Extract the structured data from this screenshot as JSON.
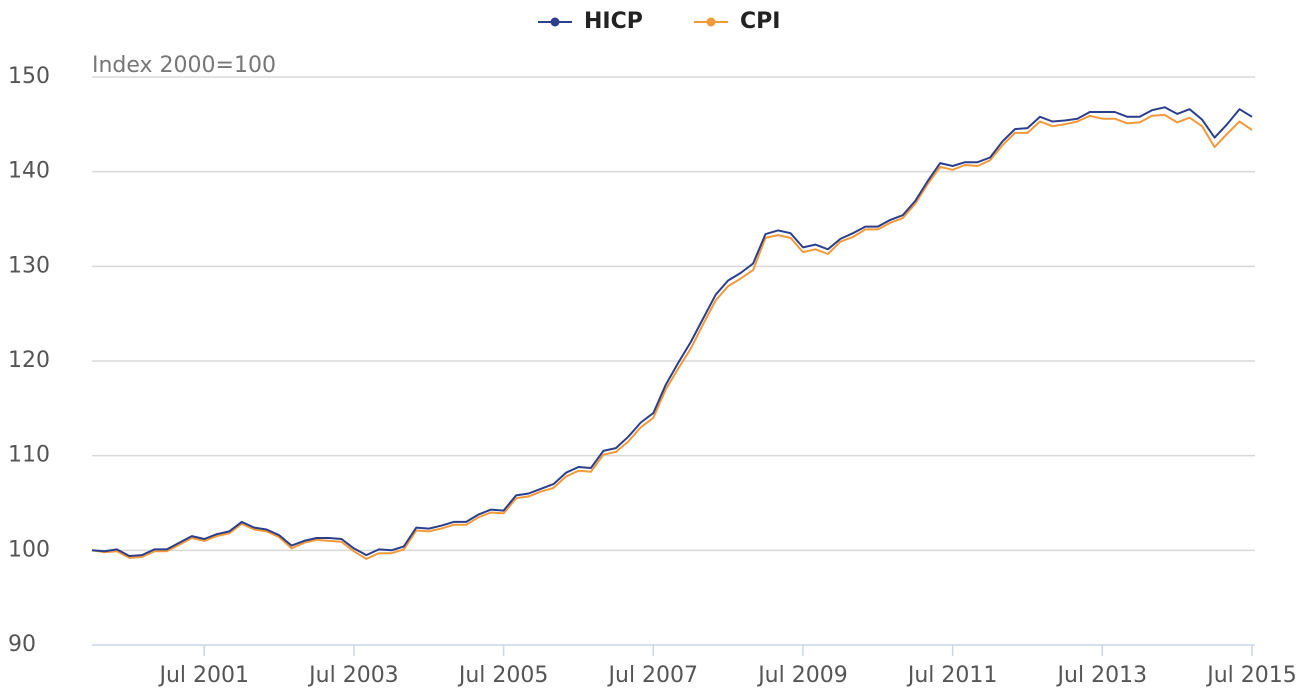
{
  "chart_data": {
    "type": "line",
    "annotation": "Index 2000=100",
    "x": [
      "2000-01",
      "2000-03",
      "2000-05",
      "2000-07",
      "2000-09",
      "2000-11",
      "2001-01",
      "2001-03",
      "2001-05",
      "2001-07",
      "2001-09",
      "2001-11",
      "2002-01",
      "2002-03",
      "2002-05",
      "2002-07",
      "2002-09",
      "2002-11",
      "2003-01",
      "2003-03",
      "2003-05",
      "2003-07",
      "2003-09",
      "2003-11",
      "2004-01",
      "2004-03",
      "2004-05",
      "2004-07",
      "2004-09",
      "2004-11",
      "2005-01",
      "2005-03",
      "2005-05",
      "2005-07",
      "2005-09",
      "2005-11",
      "2006-01",
      "2006-03",
      "2006-05",
      "2006-07",
      "2006-09",
      "2006-11",
      "2007-01",
      "2007-03",
      "2007-05",
      "2007-07",
      "2007-09",
      "2007-11",
      "2008-01",
      "2008-03",
      "2008-05",
      "2008-07",
      "2008-09",
      "2008-11",
      "2009-01",
      "2009-03",
      "2009-05",
      "2009-07",
      "2009-09",
      "2009-11",
      "2010-01",
      "2010-03",
      "2010-05",
      "2010-07",
      "2010-09",
      "2010-11",
      "2011-01",
      "2011-03",
      "2011-05",
      "2011-07",
      "2011-09",
      "2011-11",
      "2012-01",
      "2012-03",
      "2012-05",
      "2012-07",
      "2012-09",
      "2012-11",
      "2013-01",
      "2013-03",
      "2013-05",
      "2013-07",
      "2013-09",
      "2013-11",
      "2014-01",
      "2014-03",
      "2014-05",
      "2014-07",
      "2014-09",
      "2014-11",
      "2015-01",
      "2015-03",
      "2015-05",
      "2015-07"
    ],
    "series": [
      {
        "name": "HICP",
        "color": "#2b3f8c",
        "values": [
          100,
          99.9,
          100.1,
          99.4,
          99.5,
          100.1,
          100.1,
          100.8,
          101.5,
          101.2,
          101.7,
          102.0,
          103.0,
          102.4,
          102.2,
          101.6,
          100.5,
          101.0,
          101.3,
          101.3,
          101.2,
          100.2,
          99.5,
          100.1,
          100.0,
          100.4,
          102.4,
          102.3,
          102.6,
          103.0,
          103.0,
          103.8,
          104.3,
          104.2,
          105.8,
          106.0,
          106.5,
          107.0,
          108.2,
          108.8,
          108.7,
          110.5,
          110.8,
          112.0,
          113.5,
          114.5,
          117.5,
          119.8,
          122.0,
          124.5,
          127.0,
          128.5,
          129.3,
          130.3,
          133.4,
          133.8,
          133.5,
          132.0,
          132.3,
          131.8,
          132.9,
          133.5,
          134.2,
          134.2,
          134.9,
          135.4,
          136.9,
          139.0,
          140.9,
          140.6,
          141.0,
          141.0,
          141.5,
          143.2,
          144.5,
          144.6,
          145.8,
          145.3,
          145.4,
          145.6,
          146.3,
          146.3,
          146.3,
          145.8,
          145.8,
          146.5,
          146.8,
          146.1,
          146.6,
          145.5,
          143.6,
          145.0,
          146.6,
          145.8
        ]
      },
      {
        "name": "CPI",
        "color": "#f29a3a",
        "values": [
          100,
          99.8,
          99.9,
          99.2,
          99.3,
          99.9,
          99.9,
          100.6,
          101.3,
          101.0,
          101.5,
          101.8,
          102.8,
          102.2,
          102.0,
          101.4,
          100.2,
          100.8,
          101.1,
          101.0,
          100.9,
          99.9,
          99.1,
          99.7,
          99.7,
          100.1,
          102.1,
          102.0,
          102.3,
          102.7,
          102.7,
          103.5,
          104.0,
          103.9,
          105.5,
          105.7,
          106.2,
          106.6,
          107.8,
          108.4,
          108.3,
          110.1,
          110.4,
          111.5,
          113.0,
          114.0,
          117.0,
          119.2,
          121.3,
          123.9,
          126.4,
          127.9,
          128.7,
          129.6,
          133.0,
          133.3,
          133.0,
          131.5,
          131.8,
          131.3,
          132.6,
          133.1,
          133.9,
          133.9,
          134.6,
          135.1,
          136.6,
          138.7,
          140.5,
          140.2,
          140.7,
          140.6,
          141.2,
          142.8,
          144.1,
          144.1,
          145.3,
          144.8,
          145.0,
          145.3,
          145.9,
          145.6,
          145.6,
          145.1,
          145.2,
          145.9,
          146.0,
          145.2,
          145.7,
          144.8,
          142.6,
          144.0,
          145.3,
          144.4
        ]
      }
    ],
    "xlim": [
      "2000-01",
      "2015-07"
    ],
    "xticks": [
      {
        "value": "2001-07",
        "label": "Jul 2001"
      },
      {
        "value": "2003-07",
        "label": "Jul 2003"
      },
      {
        "value": "2005-07",
        "label": "Jul 2005"
      },
      {
        "value": "2007-07",
        "label": "Jul 2007"
      },
      {
        "value": "2009-07",
        "label": "Jul 2009"
      },
      {
        "value": "2011-07",
        "label": "Jul 2011"
      },
      {
        "value": "2013-07",
        "label": "Jul 2013"
      },
      {
        "value": "2015-07",
        "label": "Jul 2015"
      }
    ],
    "ylim": [
      90,
      150
    ],
    "yticks": [
      90,
      100,
      110,
      120,
      130,
      140,
      150
    ],
    "grid": true,
    "legend": "top"
  }
}
